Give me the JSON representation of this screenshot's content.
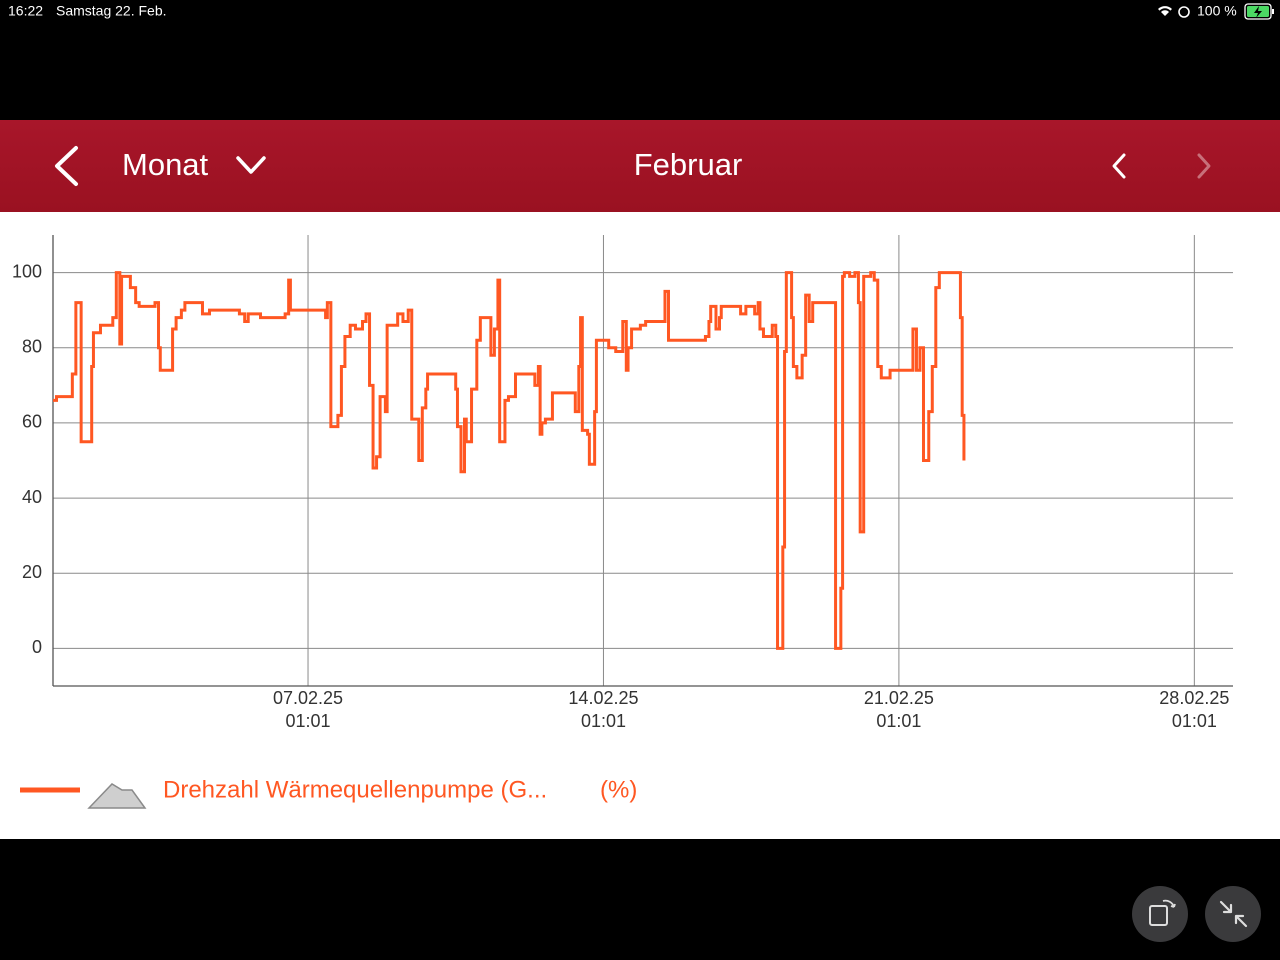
{
  "status_bar": {
    "time": "16:22",
    "date": "Samstag 22. Feb.",
    "battery": "100 %"
  },
  "header": {
    "period": "Monat",
    "title": "Februar"
  },
  "chart_data": {
    "type": "line",
    "step": "after",
    "grid": true,
    "ylim": [
      -10,
      110
    ],
    "yticks": [
      0,
      20,
      40,
      60,
      80,
      100
    ],
    "xlim": [
      "01.02.25 00:00",
      "28.02.25 23:00"
    ],
    "xticks": [
      {
        "value": "07.02.25 01:01",
        "label": [
          "07.02.25",
          "01:01"
        ]
      },
      {
        "value": "14.02.25 01:01",
        "label": [
          "14.02.25",
          "01:01"
        ]
      },
      {
        "value": "21.02.25 01:01",
        "label": [
          "21.02.25",
          "01:01"
        ]
      },
      {
        "value": "28.02.25 01:01",
        "label": [
          "28.02.25",
          "01:01"
        ]
      }
    ],
    "unit": "(%)",
    "x": [
      "01.02.25 00:00",
      "01.02.25 02:00",
      "01.02.25 11:00",
      "01.02.25 13:00",
      "01.02.25 16:00",
      "01.02.25 22:00",
      "01.02.25 23:00",
      "02.02.25 03:00",
      "02.02.25 10:00",
      "02.02.25 12:00",
      "02.02.25 14:00",
      "02.02.25 15:00",
      "02.02.25 20:00",
      "02.02.25 23:00",
      "03.02.25 01:00",
      "03.02.25 10:00",
      "03.02.25 12:00",
      "03.02.25 13:00",
      "03.02.25 20:00",
      "03.02.25 22:00",
      "04.02.25 01:00",
      "04.02.25 03:00",
      "04.02.25 13:00",
      "04.02.25 17:00",
      "05.02.25 10:00",
      "05.02.25 13:00",
      "05.02.25 15:00",
      "05.02.25 22:00",
      "06.02.25 12:00",
      "06.02.25 14:00",
      "06.02.25 15:00",
      "07.02.25 11:00",
      "07.02.25 12:00",
      "07.02.25 14:00",
      "07.02.25 18:00",
      "07.02.25 20:00",
      "07.02.25 22:00",
      "08.02.25 01:00",
      "08.02.25 04:00",
      "08.02.25 08:00",
      "08.02.25 10:00",
      "08.02.25 12:00",
      "08.02.25 14:00",
      "08.02.25 16:00",
      "08.02.25 18:00",
      "08.02.25 21:00",
      "08.02.25 22:00",
      "09.02.25 04:00",
      "09.02.25 07:00",
      "09.02.25 10:00",
      "09.02.25 12:00",
      "09.02.25 16:00",
      "09.02.25 18:00",
      "09.02.25 20:00",
      "09.02.25 21:00",
      "10.02.25 13:00",
      "10.02.25 14:00",
      "10.02.25 16:00",
      "10.02.25 18:00",
      "10.02.25 19:00",
      "10.02.25 22:00",
      "11.02.25 01:00",
      "11.02.25 03:00",
      "11.02.25 09:00",
      "11.02.25 11:00",
      "11.02.25 13:00",
      "11.02.25 14:00",
      "11.02.25 17:00",
      "11.02.25 19:00",
      "11.02.25 23:00",
      "12.02.25 10:00",
      "12.02.25 12:00",
      "12.02.25 13:00",
      "12.02.25 14:00",
      "12.02.25 16:00",
      "12.02.25 20:00",
      "13.02.25 09:00",
      "13.02.25 11:00",
      "13.02.25 12:00",
      "13.02.25 13:00",
      "13.02.25 16:00",
      "13.02.25 17:00",
      "13.02.25 20:00",
      "13.02.25 21:00",
      "14.02.25 04:00",
      "14.02.25 08:00",
      "14.02.25 12:00",
      "14.02.25 14:00",
      "14.02.25 15:00",
      "14.02.25 17:00",
      "14.02.25 22:00",
      "15.02.25 01:00",
      "15.02.25 12:00",
      "15.02.25 14:00",
      "16.02.25 11:00",
      "16.02.25 13:00",
      "16.02.25 14:00",
      "16.02.25 17:00",
      "16.02.25 19:00",
      "16.02.25 20:00",
      "17.02.25 07:00",
      "17.02.25 10:00",
      "17.02.25 15:00",
      "17.02.25 17:00",
      "17.02.25 18:00",
      "17.02.25 20:00",
      "18.02.25 01:00",
      "18.02.25 03:00",
      "18.02.25 04:00",
      "18.02.25 07:00",
      "18.02.25 08:00",
      "18.02.25 09:00",
      "18.02.25 12:00",
      "18.02.25 13:00",
      "18.02.25 15:00",
      "18.02.25 18:00",
      "18.02.25 20:00",
      "18.02.25 22:00",
      "19.02.25 00:00",
      "19.02.25 13:00",
      "19.02.25 16:00",
      "19.02.25 17:00",
      "19.02.25 18:00",
      "19.02.25 21:00",
      "20.02.25 00:00",
      "20.02.25 02:00",
      "20.02.25 03:00",
      "20.02.25 05:00",
      "20.02.25 09:00",
      "20.02.25 11:00",
      "20.02.25 13:00",
      "20.02.25 15:00",
      "20.02.25 20:00",
      "21.02.25 09:00",
      "21.02.25 11:00",
      "21.02.25 13:00",
      "21.02.25 15:00",
      "21.02.25 18:00",
      "21.02.25 20:00",
      "21.02.25 22:00",
      "22.02.25 00:00",
      "22.02.25 12:00",
      "22.02.25 13:00",
      "22.02.25 14:00"
    ],
    "series": [
      {
        "name": "Drehzahl Wärmequellenpumpe (G...",
        "color": "#ff5722",
        "values": [
          66,
          67,
          73,
          92,
          55,
          75,
          84,
          86,
          88,
          100,
          81,
          99,
          96,
          92,
          91,
          92,
          80,
          74,
          85,
          88,
          90,
          92,
          89,
          90,
          89,
          87,
          89,
          88,
          89,
          98,
          90,
          88,
          92,
          59,
          62,
          75,
          83,
          86,
          85,
          87,
          89,
          70,
          48,
          51,
          67,
          63,
          86,
          89,
          87,
          90,
          61,
          50,
          64,
          69,
          73,
          69,
          59,
          47,
          61,
          55,
          69,
          82,
          88,
          78,
          85,
          98,
          55,
          66,
          67,
          73,
          70,
          75,
          57,
          60,
          61,
          68,
          63,
          75,
          88,
          58,
          57,
          49,
          63,
          82,
          80,
          79,
          87,
          74,
          80,
          85,
          86,
          87,
          95,
          82,
          83,
          87,
          91,
          85,
          88,
          91,
          89,
          91,
          89,
          92,
          85,
          83,
          86,
          83,
          0,
          27,
          79,
          100,
          88,
          75,
          72,
          78,
          94,
          87,
          92,
          0,
          16,
          99,
          100,
          99,
          100,
          92,
          31,
          99,
          100,
          98,
          75,
          72,
          74,
          85,
          74,
          80,
          50,
          63,
          75,
          96,
          100,
          88,
          62,
          50
        ]
      }
    ]
  }
}
